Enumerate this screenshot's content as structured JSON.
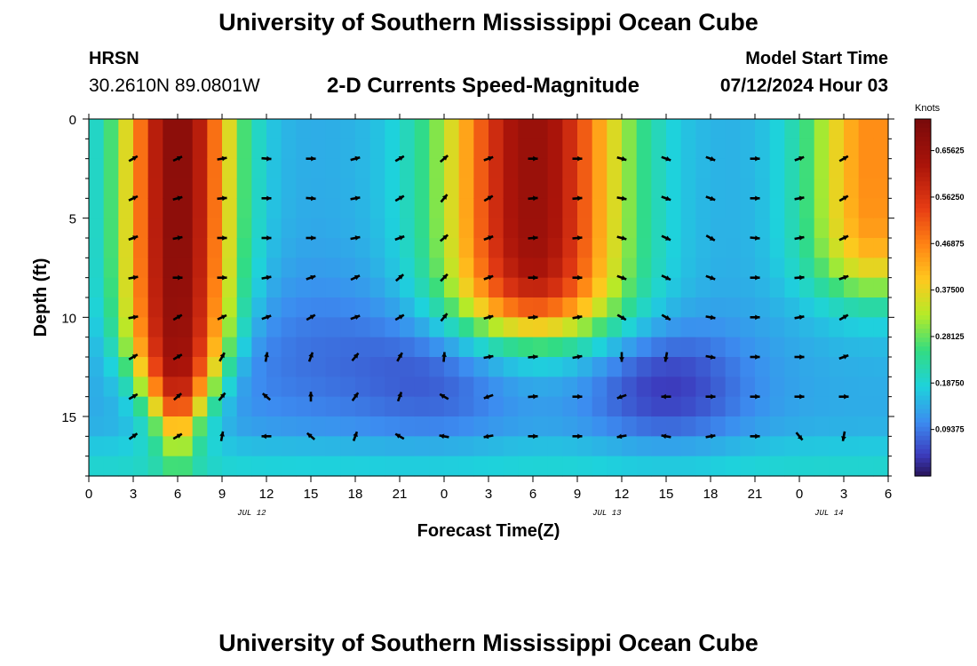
{
  "header": {
    "title": "University of Southern Mississippi Ocean Cube",
    "station": "HRSN",
    "coords": "30.2610N  89.0801W",
    "subtitle": "2-D Currents Speed-Magnitude",
    "model_start_label": "Model Start Time",
    "model_start_value": "07/12/2024 Hour 03"
  },
  "footer": {
    "title": "University of Southern Mississippi Ocean Cube"
  },
  "chart_data": {
    "type": "heatmap",
    "title": "2-D Currents Speed-Magnitude",
    "xlabel": "Forecast Time(Z)",
    "ylabel": "Depth (ft)",
    "x_tick_labels": [
      "0",
      "3",
      "6",
      "9",
      "12",
      "15",
      "18",
      "21",
      "0",
      "3",
      "6",
      "9",
      "12",
      "15",
      "18",
      "21",
      "0",
      "3",
      "6"
    ],
    "date_labels": [
      {
        "label": "JUL 12",
        "hour_index": 11
      },
      {
        "label": "JUL 13",
        "hour_index": 35
      },
      {
        "label": "JUL 14",
        "hour_index": 50
      }
    ],
    "y_tick_labels": [
      "0",
      "5",
      "10",
      "15"
    ],
    "y_ticks": [
      0,
      5,
      10,
      15
    ],
    "xlim": [
      0,
      54
    ],
    "ylim": [
      18,
      0
    ],
    "colorbar": {
      "title": "Knots",
      "range": [
        0,
        0.72
      ],
      "ticks": [
        "0.65625",
        "0.56250",
        "0.46875",
        "0.37500",
        "0.28125",
        "0.18750",
        "0.09375"
      ],
      "tick_values": [
        0.65625,
        0.5625,
        0.46875,
        0.375,
        0.28125,
        0.1875,
        0.09375
      ]
    },
    "field_description": "Speed magnitude (knots) as a function of forecast hour (0-54) and depth (0-18 ft). Peaks of ~0.66 kt near hours 3-9 and 24-33 in upper 10 ft, moderate (~0.35-0.45) near hours 48-54, minima (~0.02) near hour 38 at 14 ft.",
    "time_columns_hours": [
      3,
      6,
      9,
      12,
      15,
      18,
      21,
      24,
      27,
      30,
      33,
      36,
      39,
      42,
      45,
      48,
      51
    ],
    "vector_depths_ft": [
      2,
      4,
      6,
      8,
      10,
      12,
      14,
      16
    ],
    "vector_angles_deg": [
      [
        -30,
        -25,
        -10,
        5,
        0,
        -15,
        -30,
        -40,
        -20,
        0,
        0,
        15,
        20,
        20,
        0,
        -20,
        -30
      ],
      [
        -25,
        -15,
        -5,
        0,
        5,
        -10,
        -30,
        -50,
        -30,
        -5,
        -5,
        10,
        20,
        20,
        0,
        -10,
        -30
      ],
      [
        -20,
        -10,
        0,
        0,
        0,
        -10,
        -20,
        -40,
        -20,
        -5,
        -5,
        15,
        25,
        30,
        5,
        -10,
        -25
      ],
      [
        -10,
        0,
        0,
        -10,
        -20,
        -25,
        -40,
        -45,
        -20,
        0,
        0,
        20,
        25,
        20,
        0,
        -5,
        -20
      ],
      [
        -10,
        -30,
        -25,
        -20,
        -30,
        -20,
        -30,
        -50,
        -15,
        -5,
        -10,
        30,
        30,
        10,
        0,
        -10,
        -30
      ],
      [
        -30,
        -30,
        -60,
        -80,
        -70,
        -50,
        -60,
        -85,
        -10,
        -5,
        -10,
        90,
        100,
        10,
        0,
        0,
        -20
      ],
      [
        -30,
        -40,
        -50,
        -140,
        -90,
        -55,
        -70,
        -150,
        160,
        -5,
        0,
        160,
        180,
        0,
        0,
        0,
        0
      ],
      [
        -35,
        -30,
        -80,
        180,
        -140,
        -70,
        -150,
        190,
        170,
        0,
        0,
        170,
        -170,
        -10,
        0,
        50,
        100
      ]
    ]
  }
}
